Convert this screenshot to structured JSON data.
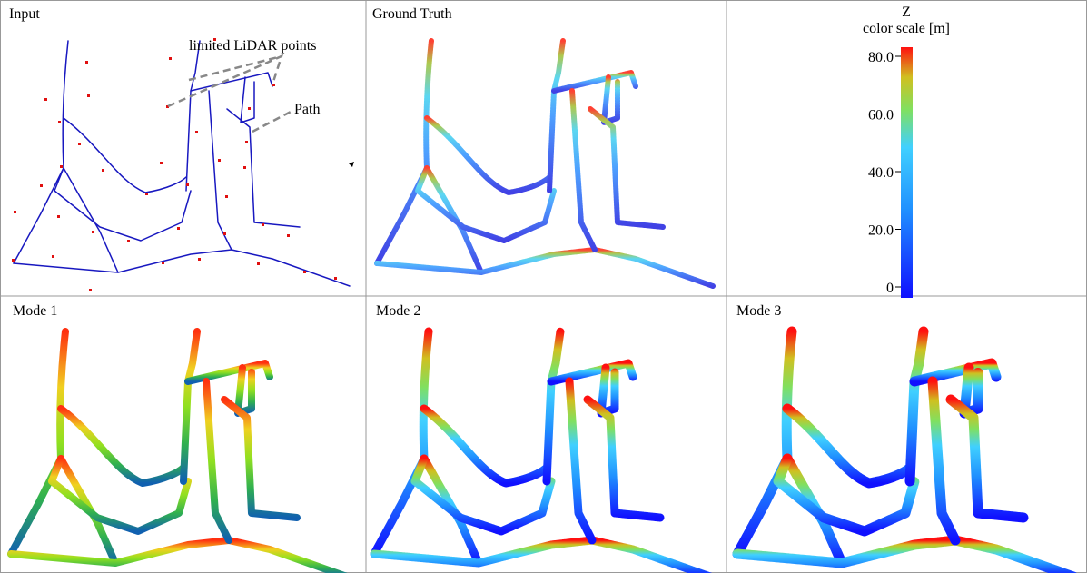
{
  "panels": [
    {
      "title": "Input"
    },
    {
      "title": "Ground Truth"
    },
    {
      "title": "Mode 1"
    },
    {
      "title": "Mode 2"
    },
    {
      "title": "Mode 3"
    }
  ],
  "annotations": {
    "points": "limited LiDAR points",
    "path": "Path"
  },
  "colorbar": {
    "title": "Z",
    "subtitle": "color scale [m]",
    "lim": [
      0,
      80
    ],
    "ticks": [
      {
        "value": 0,
        "label": "0"
      },
      {
        "value": 20,
        "label": "20.0"
      },
      {
        "value": 40,
        "label": "40.0"
      },
      {
        "value": 60,
        "label": "60.0"
      },
      {
        "value": 80,
        "label": "80.0"
      }
    ]
  }
}
